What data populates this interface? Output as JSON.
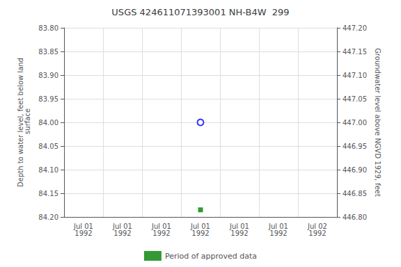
{
  "chart_data": {
    "type": "scatter",
    "title": "USGS 424611071393001 NH-B4W  299",
    "ylabel": "Depth to water level, feet below land\n surface",
    "y2label": "Groundwater level above NGVD 1929, feet",
    "categories": [
      "Jul 01\n1992",
      "Jul 01\n1992",
      "Jul 01\n1992",
      "Jul 01\n1992",
      "Jul 01\n1992",
      "Jul 01\n1992",
      "Jul 02\n1992"
    ],
    "series": [
      {
        "color": "blue",
        "marker": "circle_open",
        "values": [
          null,
          null,
          null,
          84.0,
          null,
          null,
          null
        ]
      },
      {
        "name": "Period of approved data",
        "color": "green",
        "marker": "square",
        "values": [
          null,
          null,
          null,
          84.185,
          null,
          null,
          null
        ]
      }
    ],
    "ylim": [
      84.2,
      83.8
    ],
    "yticks": [
      {
        "value": 83.8,
        "label": "83.80"
      },
      {
        "value": 83.85,
        "label": "83.85"
      },
      {
        "value": 83.9,
        "label": "83.90"
      },
      {
        "value": 83.95,
        "label": "83.95"
      },
      {
        "value": 84.0,
        "label": "84.00"
      },
      {
        "value": 84.05,
        "label": "84.05"
      },
      {
        "value": 84.1,
        "label": "84.10"
      },
      {
        "value": 84.15,
        "label": "84.15"
      },
      {
        "value": 84.2,
        "label": "84.20"
      }
    ],
    "y2lim": [
      446.8,
      447.2
    ],
    "y2ticks": [
      {
        "value": 447.2,
        "label": "447.20"
      },
      {
        "value": 447.15,
        "label": "447.15"
      },
      {
        "value": 447.1,
        "label": "447.10"
      },
      {
        "value": 447.05,
        "label": "447.05"
      },
      {
        "value": 447.0,
        "label": "447.00"
      },
      {
        "value": 446.95,
        "label": "446.95"
      },
      {
        "value": 446.9,
        "label": "446.90"
      },
      {
        "value": 446.85,
        "label": "446.85"
      },
      {
        "value": 446.8,
        "label": "446.80"
      }
    ],
    "grid": true,
    "legend": "bottom"
  }
}
